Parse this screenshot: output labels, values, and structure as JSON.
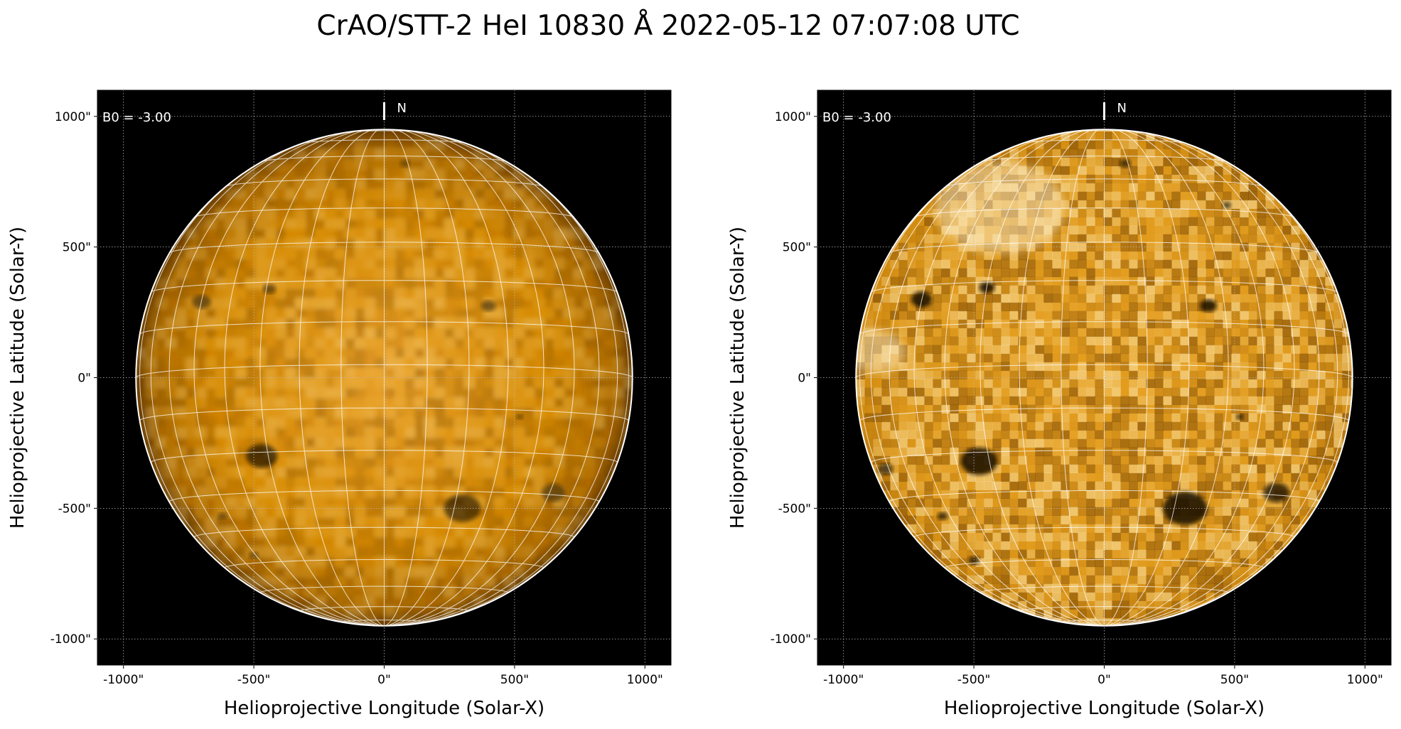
{
  "figure": {
    "title": "CrAO/STT-2 HeI 10830 Å 2022-05-12 07:07:08 UTC"
  },
  "colors": {
    "disk": "#d98c00",
    "disk_light": "#f0b040",
    "limb": "#ffffff",
    "background": "#000000"
  },
  "chart_data": [
    {
      "type": "heatmap",
      "panel": "left",
      "title": "",
      "xlabel": "Helioprojective Longitude (Solar-X)",
      "ylabel": "Helioprojective Latitude (Solar-Y)",
      "xlim": [
        -1100,
        1100
      ],
      "ylim": [
        -1100,
        1100
      ],
      "xticks": [
        -1000,
        -500,
        0,
        500,
        1000
      ],
      "xtick_labels": [
        "-1000\"",
        "-500\"",
        "0\"",
        "500\"",
        "1000\""
      ],
      "yticks": [
        1000,
        500,
        0,
        -500,
        -1000
      ],
      "ytick_labels": [
        "1000\"",
        "500\"",
        "0\"",
        "-500\"",
        "-1000\""
      ],
      "grid": true,
      "annotation_b0": "B0 = -3.00",
      "north_label": "N",
      "b0_deg": -3.0,
      "solar_radius_arcsec": 952,
      "heliographic_grid_spacing_deg": 10,
      "contrast": 0.7,
      "dark_features": [
        {
          "x": -470,
          "y": -300,
          "r": 60,
          "depth": 0.8
        },
        {
          "x": 300,
          "y": -500,
          "r": 70,
          "depth": 0.7
        },
        {
          "x": 650,
          "y": -440,
          "r": 45,
          "depth": 0.6
        },
        {
          "x": -700,
          "y": 290,
          "r": 35,
          "depth": 0.6
        },
        {
          "x": -440,
          "y": 340,
          "r": 25,
          "depth": 0.6
        },
        {
          "x": 400,
          "y": 275,
          "r": 28,
          "depth": 0.6
        },
        {
          "x": -620,
          "y": -530,
          "r": 18,
          "depth": 0.5
        },
        {
          "x": -500,
          "y": -680,
          "r": 18,
          "depth": 0.5
        },
        {
          "x": 520,
          "y": -150,
          "r": 14,
          "depth": 0.5
        },
        {
          "x": 80,
          "y": 820,
          "r": 20,
          "depth": 0.4
        }
      ]
    },
    {
      "type": "heatmap",
      "panel": "right",
      "title": "",
      "xlabel": "Helioprojective Longitude (Solar-X)",
      "ylabel": "Helioprojective Latitude (Solar-Y)",
      "xlim": [
        -1100,
        1100
      ],
      "ylim": [
        -1100,
        1100
      ],
      "xticks": [
        -1000,
        -500,
        0,
        500,
        1000
      ],
      "xtick_labels": [
        "-1000\"",
        "-500\"",
        "0\"",
        "500\"",
        "1000\""
      ],
      "yticks": [
        1000,
        500,
        0,
        -500,
        -1000
      ],
      "ytick_labels": [
        "1000\"",
        "500\"",
        "0\"",
        "-500\"",
        "-1000\""
      ],
      "grid": true,
      "annotation_b0": "B0 = -3.00",
      "north_label": "N",
      "b0_deg": -3.0,
      "solar_radius_arcsec": 952,
      "heliographic_grid_spacing_deg": 10,
      "contrast": 1.0,
      "dark_features": [
        {
          "x": -480,
          "y": -320,
          "r": 70,
          "depth": 1.0
        },
        {
          "x": 310,
          "y": -500,
          "r": 85,
          "depth": 1.0
        },
        {
          "x": 660,
          "y": -440,
          "r": 50,
          "depth": 0.9
        },
        {
          "x": -700,
          "y": 300,
          "r": 40,
          "depth": 1.0
        },
        {
          "x": -450,
          "y": 345,
          "r": 30,
          "depth": 1.0
        },
        {
          "x": 400,
          "y": 275,
          "r": 32,
          "depth": 1.0
        },
        {
          "x": -620,
          "y": -530,
          "r": 20,
          "depth": 0.9
        },
        {
          "x": -500,
          "y": -700,
          "r": 22,
          "depth": 0.9
        },
        {
          "x": -840,
          "y": -350,
          "r": 30,
          "depth": 0.8
        },
        {
          "x": 520,
          "y": -150,
          "r": 15,
          "depth": 0.9
        },
        {
          "x": 80,
          "y": 820,
          "r": 22,
          "depth": 0.8
        },
        {
          "x": 470,
          "y": 660,
          "r": 18,
          "depth": 0.8
        }
      ],
      "bright_features": [
        {
          "x": -400,
          "y": 650,
          "r": 250
        },
        {
          "x": -880,
          "y": 100,
          "r": 120
        }
      ]
    }
  ]
}
